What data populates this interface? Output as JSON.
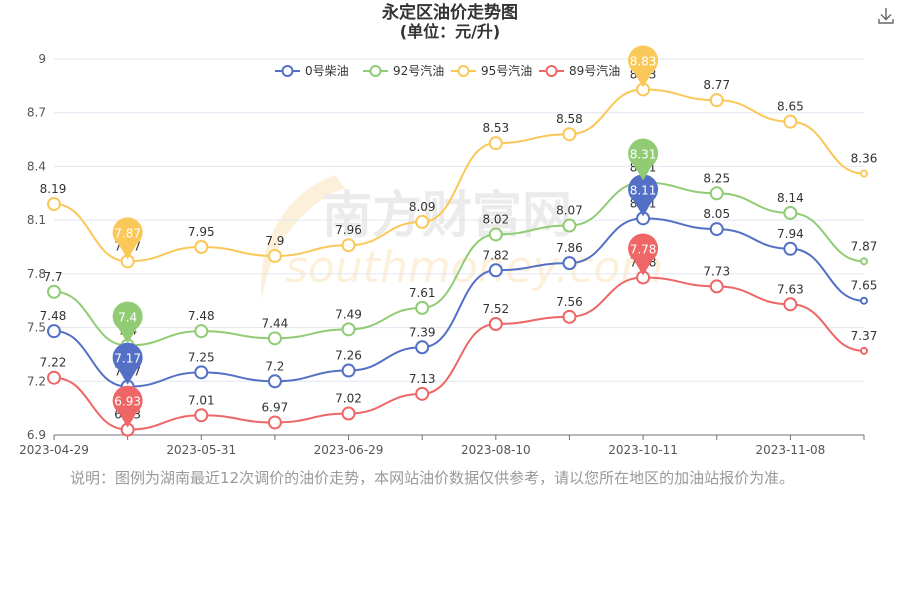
{
  "title": "永定区油价走势图",
  "subtitle": "(单位：元/升)",
  "note": "说明：图例为湖南最近12次调价的油价走势，本网站油价数据仅供参考，请以您所在地区的加油站报价为准。",
  "watermark": "南方财富网 southmoney.com",
  "icons": {
    "download": "download-icon"
  },
  "chart_data": {
    "type": "line",
    "title": "永定区油价走势图",
    "subtitle": "(单位：元/升)",
    "ylim": [
      6.9,
      9.0
    ],
    "y_ticks": [
      "6.9",
      "7.2",
      "7.5",
      "7.8",
      "8.1",
      "8.4",
      "8.7",
      "9"
    ],
    "x_tick_labels": [
      {
        "index": 0,
        "label": "2023-04-29"
      },
      {
        "index": 2,
        "label": "2023-05-31"
      },
      {
        "index": 4,
        "label": "2023-06-29"
      },
      {
        "index": 6,
        "label": "2023-08-10"
      },
      {
        "index": 8,
        "label": "2023-10-11"
      },
      {
        "index": 10,
        "label": "2023-11-08"
      }
    ],
    "n_points": 12,
    "legend_position": "top-center",
    "grid": true,
    "series": [
      {
        "name": "0号柴油",
        "color": "#5470c6",
        "values": [
          7.48,
          7.17,
          7.25,
          7.2,
          7.26,
          7.39,
          7.82,
          7.86,
          8.11,
          8.05,
          7.94,
          7.65
        ],
        "max_index": 8,
        "min_index": 1
      },
      {
        "name": "92号汽油",
        "color": "#91cc75",
        "values": [
          7.7,
          7.4,
          7.48,
          7.44,
          7.49,
          7.61,
          8.02,
          8.07,
          8.31,
          8.25,
          8.14,
          7.87
        ],
        "max_index": 8,
        "min_index": 1
      },
      {
        "name": "95号汽油",
        "color": "#fac858",
        "values": [
          8.19,
          7.87,
          7.95,
          7.9,
          7.96,
          8.09,
          8.53,
          8.58,
          8.83,
          8.77,
          8.65,
          8.36
        ],
        "max_index": 8,
        "min_index": 1
      },
      {
        "name": "89号汽油",
        "color": "#ee6666",
        "values": [
          7.22,
          6.93,
          7.01,
          6.97,
          7.02,
          7.13,
          7.52,
          7.56,
          7.78,
          7.73,
          7.63,
          7.37
        ],
        "max_index": 8,
        "min_index": 1
      }
    ]
  }
}
